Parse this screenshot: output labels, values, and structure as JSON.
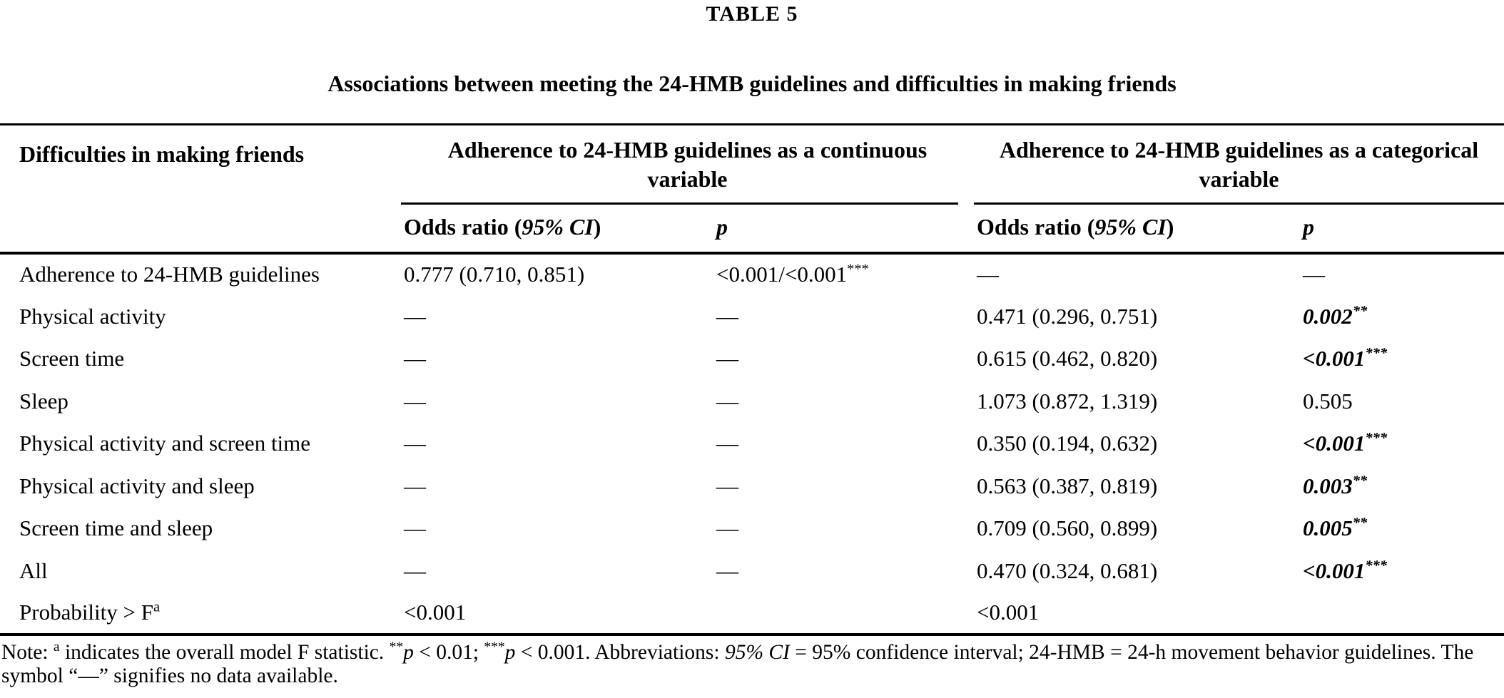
{
  "table_number": "TABLE 5",
  "table_title": "Associations between meeting the 24-HMB guidelines and difficulties in making friends",
  "header": {
    "stub": "Difficulties in making friends",
    "group_continuous": "Adherence to 24-HMB guidelines as a continuous variable",
    "group_categorical": "Adherence to 24-HMB guidelines as a categorical variable",
    "odds_ratio_prefix": "Odds ratio (",
    "odds_ratio_italic": "95% CI",
    "odds_ratio_suffix": ")",
    "p_label": "p"
  },
  "rows": [
    {
      "label": "Adherence to 24-HMB guidelines",
      "label_sup": "",
      "cont_or": "0.777 (0.710, 0.851)",
      "cont_p": "<0.001/<0.001",
      "cont_p_sup": "***",
      "cont_p_bold": false,
      "cat_or": "—",
      "cat_p": "—",
      "cat_p_sup": "",
      "cat_p_bold": false
    },
    {
      "label": "Physical activity",
      "label_sup": "",
      "cont_or": "—",
      "cont_p": "—",
      "cont_p_sup": "",
      "cont_p_bold": false,
      "cat_or": "0.471 (0.296, 0.751)",
      "cat_p": "0.002",
      "cat_p_sup": "**",
      "cat_p_bold": true
    },
    {
      "label": "Screen time",
      "label_sup": "",
      "cont_or": "—",
      "cont_p": "—",
      "cont_p_sup": "",
      "cont_p_bold": false,
      "cat_or": "0.615 (0.462, 0.820)",
      "cat_p": "<0.001",
      "cat_p_sup": "***",
      "cat_p_bold": true
    },
    {
      "label": "Sleep",
      "label_sup": "",
      "cont_or": "—",
      "cont_p": "—",
      "cont_p_sup": "",
      "cont_p_bold": false,
      "cat_or": "1.073 (0.872, 1.319)",
      "cat_p": "0.505",
      "cat_p_sup": "",
      "cat_p_bold": false
    },
    {
      "label": "Physical activity and screen time",
      "label_sup": "",
      "cont_or": "—",
      "cont_p": "—",
      "cont_p_sup": "",
      "cont_p_bold": false,
      "cat_or": "0.350 (0.194, 0.632)",
      "cat_p": "<0.001",
      "cat_p_sup": "***",
      "cat_p_bold": true
    },
    {
      "label": "Physical activity and sleep",
      "label_sup": "",
      "cont_or": "—",
      "cont_p": "—",
      "cont_p_sup": "",
      "cont_p_bold": false,
      "cat_or": "0.563 (0.387, 0.819)",
      "cat_p": "0.003",
      "cat_p_sup": "**",
      "cat_p_bold": true
    },
    {
      "label": "Screen time and sleep",
      "label_sup": "",
      "cont_or": "—",
      "cont_p": "—",
      "cont_p_sup": "",
      "cont_p_bold": false,
      "cat_or": "0.709 (0.560, 0.899)",
      "cat_p": "0.005",
      "cat_p_sup": "**",
      "cat_p_bold": true
    },
    {
      "label": "All",
      "label_sup": "",
      "cont_or": "—",
      "cont_p": "—",
      "cont_p_sup": "",
      "cont_p_bold": false,
      "cat_or": "0.470 (0.324, 0.681)",
      "cat_p": "<0.001",
      "cat_p_sup": "***",
      "cat_p_bold": true
    },
    {
      "label": "Probability > F",
      "label_sup": "a",
      "cont_or": "<0.001",
      "cont_p": "",
      "cont_p_sup": "",
      "cont_p_bold": false,
      "cat_or": "<0.001",
      "cat_p": "",
      "cat_p_sup": "",
      "cat_p_bold": false
    }
  ],
  "footnote": {
    "segments": [
      {
        "text": "Note: ",
        "style": "normal"
      },
      {
        "text": "a",
        "style": "sup"
      },
      {
        "text": " indicates the overall model F statistic. ",
        "style": "normal"
      },
      {
        "text": "**",
        "style": "sup"
      },
      {
        "text": "p",
        "style": "italic"
      },
      {
        "text": " < 0.01; ",
        "style": "normal"
      },
      {
        "text": "***",
        "style": "sup"
      },
      {
        "text": "p",
        "style": "italic"
      },
      {
        "text": " < 0.001. Abbreviations: ",
        "style": "normal"
      },
      {
        "text": "95% CI",
        "style": "italic"
      },
      {
        "text": " = 95% confidence interval; 24-HMB = 24-h movement behavior guidelines. The symbol “—” signifies no data available.",
        "style": "normal"
      }
    ]
  }
}
